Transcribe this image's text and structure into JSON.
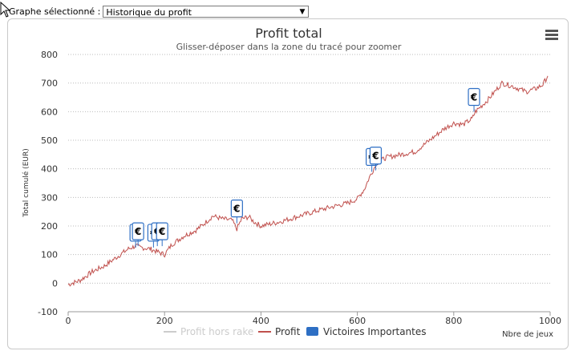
{
  "selector": {
    "label": "Graphe sélectionné :",
    "selected": "Historique du profit"
  },
  "chart_data": {
    "type": "line",
    "title": "Profit total",
    "subtitle": "Glisser-déposer dans la zone du tracé pour zoomer",
    "xlabel": "Nbre de jeux",
    "ylabel": "Total cumulé (EUR)",
    "xlim": [
      0,
      1000
    ],
    "ylim": [
      -100,
      800
    ],
    "xticks": [
      0,
      200,
      400,
      600,
      800,
      1000
    ],
    "xtick_labels": [
      "0",
      "200",
      "400",
      "600",
      "800",
      "1000"
    ],
    "yticks": [
      -100,
      0,
      100,
      200,
      300,
      400,
      500,
      600,
      700,
      800
    ],
    "ytick_labels": [
      "-100",
      "0",
      "100",
      "200",
      "300",
      "400",
      "500",
      "600",
      "700",
      "800"
    ],
    "grid": "horizontal dotted",
    "legend_position": "bottom-center",
    "series": [
      {
        "name": "Profit hors rake",
        "color": "#cccccc",
        "hidden": true,
        "points": []
      },
      {
        "name": "Profit",
        "color": "#c0504d",
        "points": [
          [
            0,
            -5
          ],
          [
            25,
            10
          ],
          [
            50,
            40
          ],
          [
            75,
            60
          ],
          [
            100,
            90
          ],
          [
            125,
            120
          ],
          [
            140,
            130
          ],
          [
            150,
            125
          ],
          [
            170,
            120
          ],
          [
            185,
            110
          ],
          [
            200,
            100
          ],
          [
            215,
            135
          ],
          [
            240,
            165
          ],
          [
            265,
            185
          ],
          [
            280,
            205
          ],
          [
            300,
            235
          ],
          [
            320,
            225
          ],
          [
            340,
            220
          ],
          [
            350,
            190
          ],
          [
            360,
            225
          ],
          [
            375,
            232
          ],
          [
            385,
            215
          ],
          [
            400,
            200
          ],
          [
            440,
            215
          ],
          [
            480,
            235
          ],
          [
            520,
            255
          ],
          [
            550,
            268
          ],
          [
            580,
            280
          ],
          [
            600,
            295
          ],
          [
            615,
            330
          ],
          [
            625,
            370
          ],
          [
            640,
            420
          ],
          [
            660,
            440
          ],
          [
            690,
            450
          ],
          [
            720,
            460
          ],
          [
            750,
            500
          ],
          [
            780,
            540
          ],
          [
            800,
            560
          ],
          [
            820,
            555
          ],
          [
            838,
            575
          ],
          [
            845,
            600
          ],
          [
            870,
            640
          ],
          [
            900,
            700
          ],
          [
            920,
            690
          ],
          [
            950,
            670
          ],
          [
            970,
            680
          ],
          [
            985,
            695
          ],
          [
            995,
            725
          ]
        ]
      }
    ],
    "markers": {
      "name": "Victoires Importantes",
      "color": "#2e6fc4",
      "symbol": "€",
      "items": [
        {
          "x": 140,
          "y": 175
        },
        {
          "x": 145,
          "y": 180
        },
        {
          "x": 177,
          "y": 175
        },
        {
          "x": 185,
          "y": 180
        },
        {
          "x": 195,
          "y": 180
        },
        {
          "x": 350,
          "y": 260
        },
        {
          "x": 630,
          "y": 440
        },
        {
          "x": 638,
          "y": 445
        },
        {
          "x": 842,
          "y": 650
        }
      ]
    }
  }
}
